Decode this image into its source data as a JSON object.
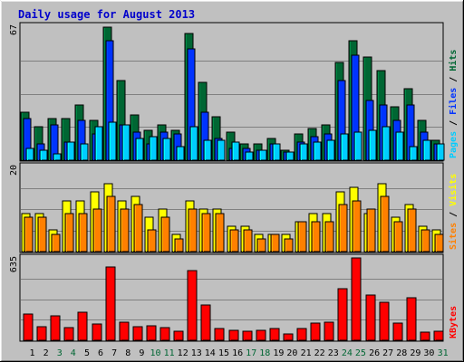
{
  "colors": {
    "background": "#c0c0c0",
    "title": "#0000cc",
    "grid": "#808080",
    "hits": "#006633",
    "files": "#0033ff",
    "pages": "#00ccff",
    "visits": "#ffff00",
    "sites": "#ff8000",
    "kbytes": "#ff0000",
    "weekend_label": "#006633",
    "weekday_label": "#000000"
  },
  "chart_data": {
    "type": "bar",
    "title": "Daily usage for August 2013",
    "days": [
      "1",
      "2",
      "3",
      "4",
      "5",
      "6",
      "7",
      "8",
      "9",
      "10",
      "11",
      "12",
      "13",
      "14",
      "15",
      "16",
      "17",
      "18",
      "19",
      "20",
      "21",
      "22",
      "23",
      "24",
      "25",
      "26",
      "27",
      "28",
      "29",
      "30",
      "31"
    ],
    "weekend_days": [
      "3",
      "4",
      "10",
      "11",
      "17",
      "18",
      "24",
      "25",
      "31"
    ],
    "panels": [
      {
        "ymax_label": "67",
        "ymax": 67,
        "legend": [
          "Pages",
          "Files",
          "Hits"
        ],
        "series": [
          {
            "name": "Hits",
            "values": [
              24,
              17,
              21,
              21,
              28,
              20,
              67,
              40,
              23,
              15,
              18,
              15,
              64,
              39,
              22,
              14,
              8,
              8,
              11,
              5,
              13,
              16,
              18,
              49,
              60,
              52,
              45,
              27,
              36,
              20,
              10
            ]
          },
          {
            "name": "Files",
            "values": [
              21,
              8,
              18,
              9,
              20,
              13,
              60,
              18,
              14,
              8,
              14,
              13,
              56,
              24,
              11,
              6,
              6,
              5,
              8,
              4,
              9,
              12,
              13,
              40,
              53,
              30,
              28,
              20,
              28,
              14,
              8
            ]
          },
          {
            "name": "Pages",
            "values": [
              6,
              5,
              3,
              9,
              8,
              17,
              19,
              18,
              11,
              12,
              11,
              7,
              17,
              10,
              10,
              9,
              4,
              5,
              8,
              4,
              8,
              9,
              10,
              13,
              14,
              15,
              17,
              14,
              7,
              10,
              8
            ]
          }
        ]
      },
      {
        "ymax_label": "20",
        "ymax": 20,
        "legend": [
          "Sites",
          "Visits"
        ],
        "series": [
          {
            "name": "Visits",
            "values": [
              9,
              9,
              5,
              12,
              12,
              14,
              16,
              12,
              13,
              8,
              10,
              4,
              12,
              10,
              10,
              6,
              6,
              4,
              4,
              4,
              7,
              9,
              9,
              14,
              15,
              9,
              16,
              8,
              11,
              6,
              5
            ]
          },
          {
            "name": "Sites",
            "values": [
              8,
              8,
              4,
              9,
              9,
              10,
              13,
              10,
              11,
              5,
              8,
              3,
              10,
              9,
              9,
              5,
              5,
              3,
              4,
              3,
              7,
              7,
              7,
              11,
              12,
              10,
              13,
              7,
              10,
              5,
              4
            ]
          }
        ]
      },
      {
        "ymax_label": "635",
        "ymax": 635,
        "legend": [
          "KBytes"
        ],
        "series": [
          {
            "name": "KBytes",
            "values": [
              200,
              108,
              185,
              95,
              218,
              126,
              562,
              140,
              106,
              115,
              95,
              72,
              538,
              274,
              90,
              76,
              73,
              74,
              88,
              48,
              94,
              133,
              140,
              395,
              635,
              352,
              292,
              132,
              330,
              62,
              70
            ]
          }
        ]
      }
    ]
  }
}
